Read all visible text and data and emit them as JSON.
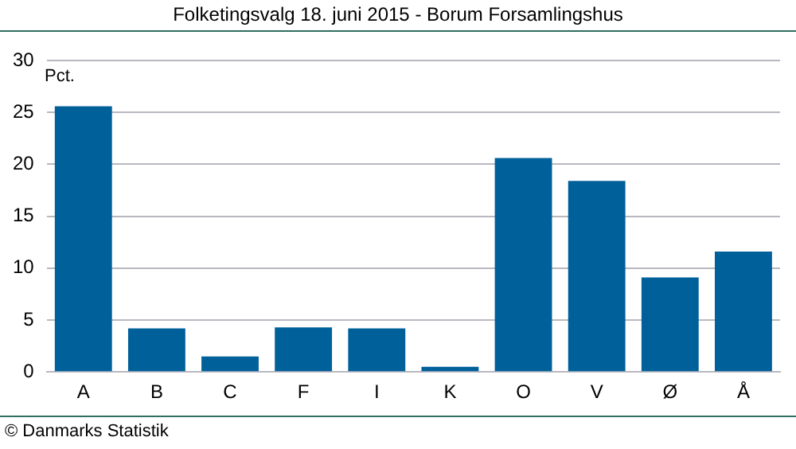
{
  "chart_data": {
    "type": "bar",
    "title": "Folketingsvalg 18. juni 2015 - Borum Forsamlingshus",
    "ylabel": "Pct.",
    "categories": [
      "A",
      "B",
      "C",
      "F",
      "I",
      "K",
      "O",
      "V",
      "Ø",
      "Å"
    ],
    "values": [
      25.6,
      4.2,
      1.5,
      4.3,
      4.2,
      0.5,
      20.6,
      18.4,
      9.1,
      11.6
    ],
    "color": "#00609a",
    "ylim": [
      0,
      30
    ],
    "yticks": [
      0,
      5,
      10,
      15,
      20,
      25,
      30
    ],
    "grid": "y",
    "legend": false,
    "annotations": [
      "© Danmarks Statistik"
    ]
  }
}
